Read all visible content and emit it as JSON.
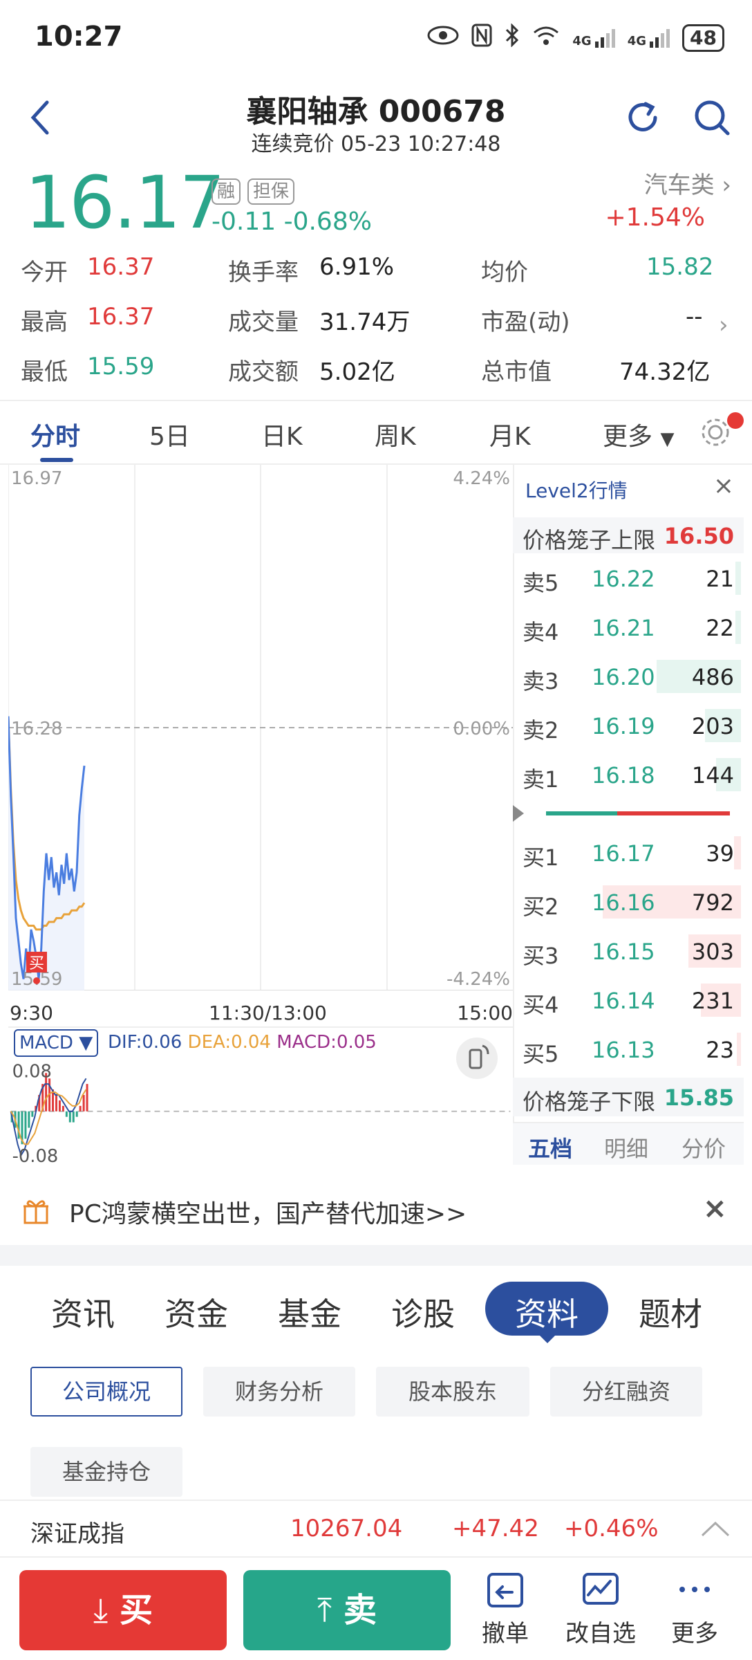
{
  "status": {
    "time": "10:27",
    "battery": "48",
    "net1": "4G",
    "net2": "4G"
  },
  "header": {
    "title": "襄阳轴承 000678",
    "subtitle": "连续竞价 05-23 10:27:48"
  },
  "quote": {
    "price": "16.17",
    "tag1": "融",
    "tag2": "担保",
    "change": "-0.11  -0.68%",
    "sector": "汽车类 ›",
    "sector_change": "+1.54%"
  },
  "stats": [
    {
      "label": "今开",
      "value": "16.37"
    },
    {
      "label": "换手率",
      "value": "6.91%"
    },
    {
      "label": "均价",
      "value": "15.82"
    },
    {
      "label": "最高",
      "value": "16.37"
    },
    {
      "label": "成交量",
      "value": "31.74万"
    },
    {
      "label": "市盈(动)",
      "value": "--"
    },
    {
      "label": "最低",
      "value": "15.59"
    },
    {
      "label": "成交额",
      "value": "5.02亿"
    },
    {
      "label": "总市值",
      "value": "74.32亿"
    }
  ],
  "tabs": [
    "分时",
    "5日",
    "日K",
    "周K",
    "月K",
    "更多"
  ],
  "chart": {
    "price_high": "16.97",
    "price_mid": "16.28",
    "price_low": "15.59",
    "pct_high": "4.24%",
    "pct_mid": "0.00%",
    "pct_low": "-4.24%",
    "time_start": "9:30",
    "time_mid": "11:30/13:00",
    "time_end": "15:00",
    "buy_marker": "买"
  },
  "chart_data": {
    "type": "line",
    "title": "",
    "xlabel": "",
    "ylabel": "",
    "ylim": [
      15.59,
      16.97
    ],
    "x_ticks": [
      "9:30",
      "11:30/13:00",
      "15:00"
    ],
    "series": [
      {
        "values": [
          16.31,
          16.1,
          15.95,
          15.78,
          15.72,
          15.66,
          15.62,
          15.7,
          15.64,
          15.75,
          15.72,
          15.68,
          15.62,
          15.7,
          15.85,
          15.95,
          15.88,
          15.94,
          15.86,
          15.9,
          15.84,
          15.92,
          15.87,
          15.95,
          15.88,
          15.91,
          15.85,
          15.9,
          16.05,
          16.12,
          16.18
        ]
      },
      {
        "values": [
          16.31,
          16.12,
          15.98,
          15.88,
          15.83,
          15.8,
          15.78,
          15.77,
          15.76,
          15.76,
          15.76,
          15.75,
          15.75,
          15.75,
          15.76,
          15.76,
          15.77,
          15.77,
          15.77,
          15.78,
          15.78,
          15.78,
          15.79,
          15.79,
          15.79,
          15.8,
          15.8,
          15.8,
          15.81,
          15.81,
          15.82
        ]
      }
    ]
  },
  "macd": {
    "label": "MACD ▼",
    "dif": "DIF:0.06",
    "dea": "DEA:0.04",
    "macd": "MACD:0.05",
    "top": "0.08",
    "bottom": "-0.08"
  },
  "level2": {
    "title": "Level2行情",
    "close": "×",
    "upper_label": "价格笼子上限",
    "upper_value": "16.50",
    "lower_label": "价格笼子下限",
    "lower_value": "15.85",
    "asks": [
      {
        "label": "卖5",
        "price": "16.22",
        "vol": "21",
        "bar": 0.04
      },
      {
        "label": "卖4",
        "price": "16.21",
        "vol": "22",
        "bar": 0.04
      },
      {
        "label": "卖3",
        "price": "16.20",
        "vol": "486",
        "bar": 0.61
      },
      {
        "label": "卖2",
        "price": "16.19",
        "vol": "203",
        "bar": 0.26
      },
      {
        "label": "卖1",
        "price": "16.18",
        "vol": "144",
        "bar": 0.18
      }
    ],
    "bids": [
      {
        "label": "买1",
        "price": "16.17",
        "vol": "39",
        "bar": 0.05
      },
      {
        "label": "买2",
        "price": "16.16",
        "vol": "792",
        "bar": 1.0
      },
      {
        "label": "买3",
        "price": "16.15",
        "vol": "303",
        "bar": 0.38
      },
      {
        "label": "买4",
        "price": "16.14",
        "vol": "231",
        "bar": 0.29
      },
      {
        "label": "买5",
        "price": "16.13",
        "vol": "23",
        "bar": 0.03
      }
    ],
    "tabs": [
      "五档",
      "明细",
      "分价"
    ]
  },
  "banner": {
    "text": "PC鸿蒙横空出世，国产替代加速>>",
    "close": "×"
  },
  "news_tabs": [
    "资讯",
    "资金",
    "基金",
    "诊股",
    "资料",
    "题材"
  ],
  "sub_tabs": [
    "公司概况",
    "财务分析",
    "股本股东",
    "分红融资",
    "基金持仓"
  ],
  "index": {
    "name": "深证成指",
    "value": "10267.04",
    "change": "+47.42",
    "pct": "+0.46%"
  },
  "bottom": {
    "buy": "买",
    "sell": "卖",
    "cancel": "撤单",
    "watch": "改自选",
    "more": "更多"
  },
  "colors": {
    "up": "#e03a3a",
    "down": "#2aa58a",
    "accent": "#2c4f9e"
  }
}
